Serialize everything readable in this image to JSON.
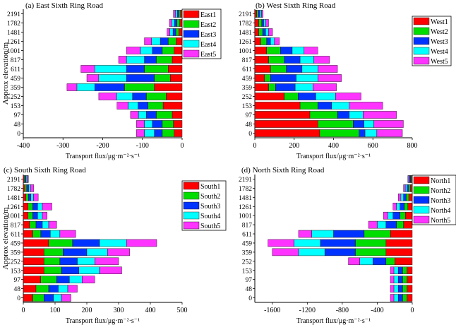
{
  "colors": {
    "series": [
      "#ff0000",
      "#00dd00",
      "#0033ff",
      "#00ffff",
      "#ff33ff"
    ]
  },
  "chart_data": [
    {
      "type": "bar",
      "orientation": "horizontal",
      "stacked": true,
      "title": "(a) East Sixth Ring Road",
      "xlabel": "Transport flux/μg·m⁻²·s⁻¹",
      "ylabel": "Approx elevation/m",
      "xlim": [
        -400,
        0
      ],
      "xticks": [
        -400,
        -300,
        -200,
        -100,
        0
      ],
      "legend_position": "top-right",
      "categories": [
        "0",
        "48",
        "97",
        "153",
        "252",
        "359",
        "459",
        "611",
        "817",
        "1001",
        "1261",
        "1481",
        "1782",
        "2191"
      ],
      "series": [
        {
          "name": "East1",
          "values": [
            -20,
            -22,
            -25,
            -48,
            -40,
            -70,
            -30,
            -35,
            -25,
            -20,
            -15,
            -8,
            -6,
            -4
          ]
        },
        {
          "name": "East2",
          "values": [
            -30,
            -28,
            -40,
            -38,
            -50,
            -75,
            -40,
            -60,
            -40,
            -30,
            -20,
            -8,
            -7,
            -4
          ]
        },
        {
          "name": "East3",
          "values": [
            -20,
            -25,
            -25,
            -25,
            -35,
            -75,
            -70,
            -45,
            -30,
            -25,
            -20,
            -7,
            -6,
            -4
          ]
        },
        {
          "name": "East4",
          "values": [
            -25,
            -20,
            -20,
            -25,
            -40,
            -45,
            -70,
            -80,
            -45,
            -30,
            -22,
            -8,
            -7,
            -5
          ]
        },
        {
          "name": "East5",
          "values": [
            -20,
            -20,
            -20,
            -28,
            -45,
            -25,
            -30,
            -35,
            -20,
            -35,
            -18,
            -7,
            -6,
            -5
          ]
        }
      ]
    },
    {
      "type": "bar",
      "orientation": "horizontal",
      "stacked": true,
      "title": "(b) West Sixth Ring Road",
      "xlabel": "Transport flux/μg·m⁻²·s⁻¹",
      "ylabel": "",
      "xlim": [
        0,
        800
      ],
      "xticks": [
        0,
        200,
        400,
        600,
        800
      ],
      "legend_position": "top-right",
      "categories": [
        "0",
        "48",
        "97",
        "153",
        "252",
        "359",
        "459",
        "611",
        "817",
        "1001",
        "1261",
        "1481",
        "1782",
        "2191"
      ],
      "series": [
        {
          "name": "West1",
          "values": [
            330,
            320,
            280,
            230,
            150,
            70,
            50,
            80,
            70,
            60,
            30,
            20,
            20,
            10
          ]
        },
        {
          "name": "West2",
          "values": [
            200,
            180,
            140,
            90,
            70,
            35,
            30,
            80,
            80,
            70,
            30,
            20,
            15,
            8
          ]
        },
        {
          "name": "West3",
          "values": [
            30,
            55,
            60,
            70,
            90,
            100,
            130,
            80,
            80,
            60,
            20,
            15,
            10,
            8
          ]
        },
        {
          "name": "West4",
          "values": [
            60,
            50,
            70,
            90,
            100,
            90,
            110,
            80,
            70,
            60,
            20,
            15,
            10,
            8
          ]
        },
        {
          "name": "West5",
          "values": [
            130,
            150,
            170,
            170,
            130,
            120,
            120,
            100,
            80,
            70,
            25,
            20,
            15,
            8
          ]
        }
      ]
    },
    {
      "type": "bar",
      "orientation": "horizontal",
      "stacked": true,
      "title": "(c) South Sixth Ring Road",
      "xlabel": "Transport flux/μg·m⁻²·s⁻¹",
      "ylabel": "Approx elevation/m",
      "xlim": [
        0,
        500
      ],
      "xticks": [
        0,
        100,
        200,
        300,
        400,
        500
      ],
      "legend_position": "top-right",
      "categories": [
        "0",
        "48",
        "97",
        "153",
        "252",
        "359",
        "459",
        "611",
        "817",
        "1001",
        "1261",
        "1481",
        "1782",
        "2191"
      ],
      "series": [
        {
          "name": "South1",
          "values": [
            30,
            40,
            55,
            65,
            65,
            65,
            80,
            30,
            20,
            15,
            15,
            8,
            5,
            3
          ]
        },
        {
          "name": "South2",
          "values": [
            35,
            40,
            50,
            55,
            50,
            60,
            75,
            25,
            20,
            15,
            15,
            8,
            6,
            3
          ]
        },
        {
          "name": "South3",
          "values": [
            30,
            30,
            40,
            55,
            55,
            75,
            85,
            30,
            20,
            15,
            15,
            8,
            6,
            3
          ]
        },
        {
          "name": "South4",
          "values": [
            25,
            30,
            40,
            65,
            55,
            65,
            85,
            30,
            20,
            15,
            15,
            8,
            6,
            3
          ]
        },
        {
          "name": "South5",
          "values": [
            30,
            30,
            40,
            70,
            75,
            70,
            95,
            50,
            25,
            15,
            30,
            15,
            10,
            4
          ]
        }
      ]
    },
    {
      "type": "bar",
      "orientation": "horizontal",
      "stacked": true,
      "title": "(d) North Sixth Ring Road",
      "xlabel": "Transport flux/μg·m⁻²·s⁻¹",
      "ylabel": "",
      "xlim": [
        -1800,
        0
      ],
      "xticks": [
        -1600,
        -1200,
        -800,
        -400,
        0
      ],
      "legend_position": "top-right",
      "categories": [
        "0",
        "48",
        "97",
        "153",
        "252",
        "359",
        "459",
        "611",
        "817",
        "1001",
        "1261",
        "1481",
        "1782",
        "2191"
      ],
      "series": [
        {
          "name": "North1",
          "values": [
            -60,
            -60,
            -60,
            -60,
            -200,
            -300,
            -300,
            -250,
            -100,
            -80,
            -50,
            -40,
            -20,
            -10
          ]
        },
        {
          "name": "North2",
          "values": [
            -50,
            -50,
            -50,
            -50,
            -100,
            -350,
            -350,
            -300,
            -80,
            -60,
            -40,
            -30,
            -20,
            -10
          ]
        },
        {
          "name": "North3",
          "values": [
            -50,
            -50,
            -50,
            -50,
            -150,
            -350,
            -400,
            -350,
            -120,
            -80,
            -50,
            -30,
            -20,
            -10
          ]
        },
        {
          "name": "North4",
          "values": [
            -50,
            -50,
            -50,
            -50,
            -150,
            -300,
            -300,
            -250,
            -100,
            -60,
            -40,
            -30,
            -20,
            -10
          ]
        },
        {
          "name": "North5",
          "values": [
            -40,
            -40,
            -40,
            -40,
            -130,
            -300,
            -300,
            -150,
            -100,
            -50,
            -40,
            -30,
            -20,
            -10
          ]
        }
      ]
    }
  ]
}
